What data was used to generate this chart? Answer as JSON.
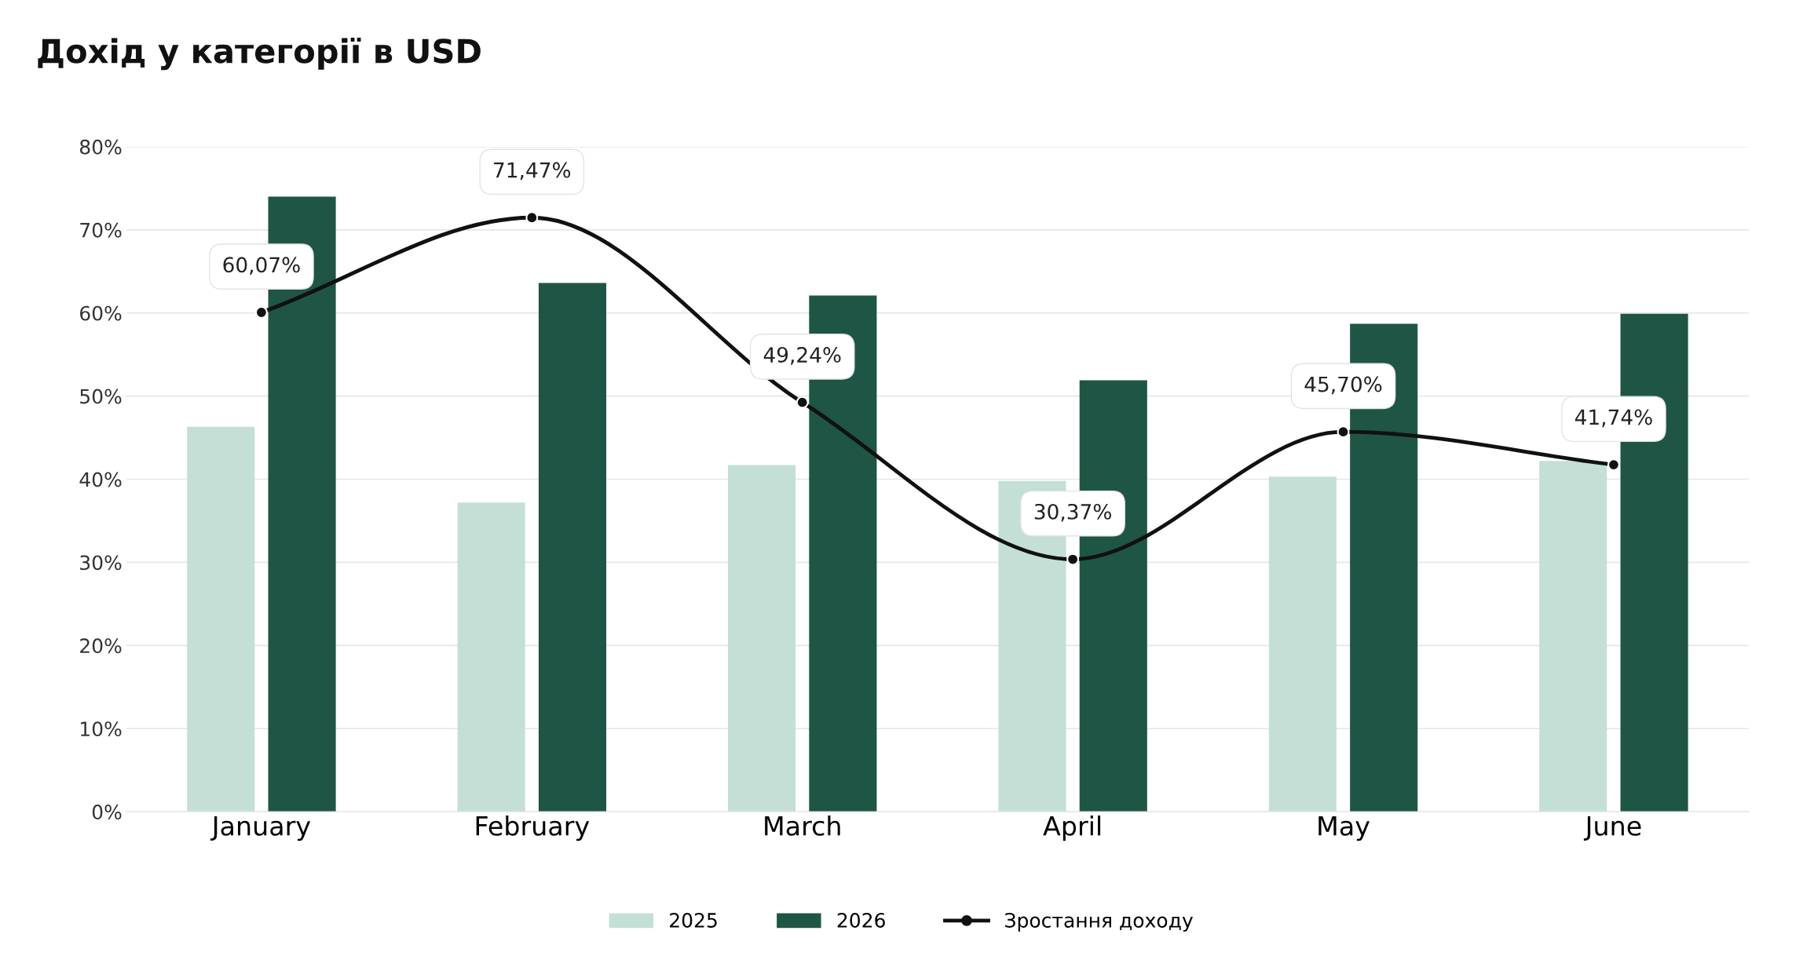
{
  "chart_data": {
    "type": "bar",
    "title": "Дохід у категорії в USD",
    "categories": [
      "January",
      "February",
      "March",
      "April",
      "May",
      "June"
    ],
    "series": [
      {
        "name": "2025",
        "color": "#c4dfd6",
        "values": [
          46.3,
          37.2,
          41.7,
          39.8,
          40.3,
          42.2
        ]
      },
      {
        "name": "2026",
        "color": "#1f5545",
        "values": [
          74.0,
          63.6,
          62.1,
          51.9,
          58.7,
          59.9
        ]
      },
      {
        "name": "Зростання доходу",
        "type": "line",
        "color": "#111111",
        "marker": "circle",
        "line_style": "solid",
        "values": [
          60.07,
          71.47,
          49.24,
          30.37,
          45.7,
          41.74
        ],
        "value_labels": [
          "60,07%",
          "71,47%",
          "49,24%",
          "30,37%",
          "45,70%",
          "41,74%"
        ]
      }
    ],
    "ylim": [
      0,
      80
    ],
    "yticks": [
      {
        "value": 0,
        "label": "0%"
      },
      {
        "value": 10,
        "label": "10%"
      },
      {
        "value": 20,
        "label": "20%"
      },
      {
        "value": 30,
        "label": "30%"
      },
      {
        "value": 40,
        "label": "40%"
      },
      {
        "value": 50,
        "label": "50%"
      },
      {
        "value": 60,
        "label": "60%"
      },
      {
        "value": 70,
        "label": "70%"
      },
      {
        "value": 80,
        "label": "80%"
      }
    ],
    "grid": "y",
    "legend": "bottom"
  }
}
